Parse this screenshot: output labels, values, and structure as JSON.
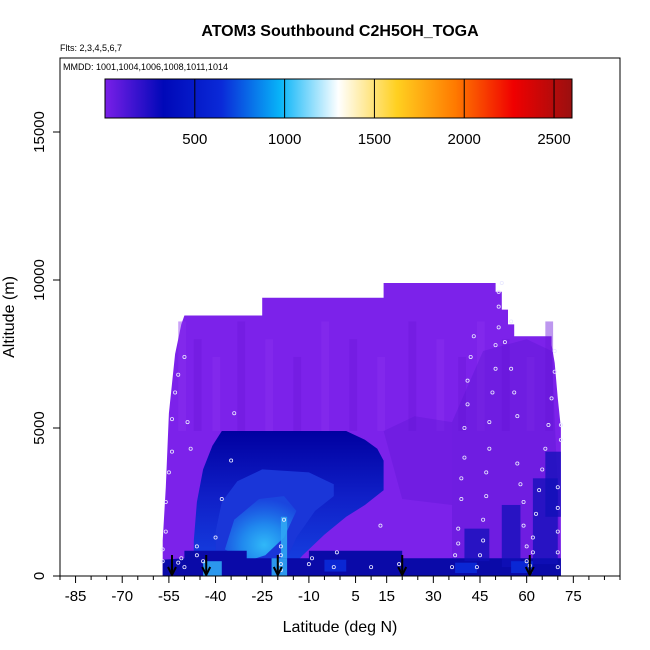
{
  "chart_data": {
    "type": "heatmap",
    "title": "ATOM3 Southbound C2H5OH_TOGA",
    "subtitle_flights": "Flts: 2,3,4,5,6,7",
    "subtitle_dates": "MMDD: 1001,1004,1006,1008,1011,1014",
    "xlabel": "Latitude (deg N)",
    "ylabel": "Altitude (m)",
    "xlim": [
      -90,
      90
    ],
    "ylim": [
      0,
      17500
    ],
    "x_ticks": [
      -85,
      -70,
      -55,
      -40,
      -25,
      -10,
      5,
      15,
      30,
      45,
      60,
      75
    ],
    "x_tick_labels": [
      "-85",
      "-70",
      "-55",
      "-40",
      "-25",
      "-10",
      "5",
      "15",
      "30",
      "45",
      "60",
      "75"
    ],
    "x_minor_step": 5,
    "y_ticks": [
      0,
      5000,
      10000,
      15000
    ],
    "y_tick_labels": [
      "0",
      "5000",
      "10000",
      "15000"
    ],
    "colorbar": {
      "range": [
        0,
        2600
      ],
      "ticks": [
        500,
        1000,
        1500,
        2000,
        2500
      ],
      "tick_labels": [
        "500",
        "1000",
        "1500",
        "2000",
        "2500"
      ],
      "stops": [
        "#7a1fe8",
        "#0008b8",
        "#0a2ad8",
        "#08b4f8",
        "#ffffff",
        "#ffd020",
        "#ff7a00",
        "#f00000",
        "#9a1010"
      ]
    },
    "curtain_outline": [
      [
        -57,
        0
      ],
      [
        -57,
        1200
      ],
      [
        -56,
        3000
      ],
      [
        -55,
        5500
      ],
      [
        -54,
        6500
      ],
      [
        -53,
        7500
      ],
      [
        -52,
        8000
      ],
      [
        -51,
        8500
      ],
      [
        -50,
        8800
      ],
      [
        -25,
        8800
      ],
      [
        -25,
        9400
      ],
      [
        14,
        9400
      ],
      [
        14,
        9900
      ],
      [
        50,
        9900
      ],
      [
        50,
        9600
      ],
      [
        52,
        9600
      ],
      [
        52,
        9000
      ],
      [
        54,
        9000
      ],
      [
        54,
        8500
      ],
      [
        56,
        8500
      ],
      [
        56,
        8100
      ],
      [
        68,
        8100
      ],
      [
        68,
        7800
      ],
      [
        69,
        7200
      ],
      [
        70,
        6000
      ],
      [
        71,
        5000
      ],
      [
        71,
        0
      ]
    ],
    "blue_layer_outline": [
      [
        -47,
        400
      ],
      [
        -47,
        1200
      ],
      [
        -46,
        2500
      ],
      [
        -44,
        3600
      ],
      [
        -41,
        4400
      ],
      [
        -38,
        4900
      ],
      [
        2,
        4900
      ],
      [
        8,
        4600
      ],
      [
        12,
        4300
      ],
      [
        14,
        3900
      ],
      [
        14,
        2900
      ],
      [
        8,
        2400
      ],
      [
        2,
        2000
      ],
      [
        -5,
        1400
      ],
      [
        -12,
        700
      ],
      [
        -15,
        350
      ],
      [
        -47,
        350
      ]
    ],
    "blue_mid_outline": [
      [
        -40,
        400
      ],
      [
        -40,
        1500
      ],
      [
        -38,
        2500
      ],
      [
        -33,
        3200
      ],
      [
        -25,
        3600
      ],
      [
        -10,
        3500
      ],
      [
        -2,
        3100
      ],
      [
        -2,
        2700
      ],
      [
        -8,
        2200
      ],
      [
        -14,
        1300
      ],
      [
        -17,
        600
      ],
      [
        -17,
        400
      ]
    ],
    "light_core": [
      [
        -37,
        900
      ],
      [
        -34,
        1900
      ],
      [
        -26,
        2600
      ],
      [
        -18,
        2700
      ],
      [
        -14,
        2200
      ],
      [
        -18,
        1300
      ],
      [
        -24,
        700
      ],
      [
        -30,
        500
      ]
    ],
    "low_layer_outline": [
      [
        -57,
        0
      ],
      [
        -57,
        550
      ],
      [
        -50,
        600
      ],
      [
        -50,
        850
      ],
      [
        -30,
        850
      ],
      [
        -30,
        600
      ],
      [
        -10,
        600
      ],
      [
        -10,
        850
      ],
      [
        20,
        850
      ],
      [
        20,
        600
      ],
      [
        71,
        600
      ],
      [
        71,
        0
      ]
    ],
    "low_bright_cells": [
      {
        "x0": -44,
        "x1": -38,
        "y0": 0,
        "y1": 500,
        "value": 900
      },
      {
        "x0": -22,
        "x1": -17,
        "y0": 0,
        "y1": 600,
        "value": 1050
      },
      {
        "x0": -19,
        "x1": -17,
        "y0": 600,
        "y1": 2000,
        "value": 1000
      },
      {
        "x0": -5,
        "x1": 2,
        "y0": 150,
        "y1": 550,
        "value": 700
      },
      {
        "x0": 37,
        "x1": 44,
        "y0": 100,
        "y1": 450,
        "value": 600
      },
      {
        "x0": 55,
        "x1": 62,
        "y0": 100,
        "y1": 500,
        "value": 550
      }
    ],
    "points": [
      [
        -57,
        500
      ],
      [
        -57,
        900
      ],
      [
        -56,
        1500
      ],
      [
        -56,
        2500
      ],
      [
        -55,
        3500
      ],
      [
        -54,
        4200
      ],
      [
        -54,
        5300
      ],
      [
        -53,
        6200
      ],
      [
        -52,
        6800
      ],
      [
        -50,
        7400
      ],
      [
        -50,
        300
      ],
      [
        -52,
        450
      ],
      [
        -51,
        600
      ],
      [
        -46,
        700
      ],
      [
        -46,
        1000
      ],
      [
        -48,
        4300
      ],
      [
        -49,
        5200
      ],
      [
        -44,
        500
      ],
      [
        -40,
        1300
      ],
      [
        -38,
        2600
      ],
      [
        -35,
        3900
      ],
      [
        -34,
        5500
      ],
      [
        -19,
        200
      ],
      [
        -19,
        400
      ],
      [
        -19,
        700
      ],
      [
        -19,
        1000
      ],
      [
        -18,
        1900
      ],
      [
        -10,
        400
      ],
      [
        -9,
        600
      ],
      [
        -2,
        300
      ],
      [
        -1,
        800
      ],
      [
        10,
        300
      ],
      [
        13,
        1700
      ],
      [
        19,
        400
      ],
      [
        36,
        300
      ],
      [
        37,
        700
      ],
      [
        38,
        1100
      ],
      [
        38,
        1600
      ],
      [
        39,
        2600
      ],
      [
        39,
        3300
      ],
      [
        40,
        4000
      ],
      [
        40,
        5000
      ],
      [
        41,
        5800
      ],
      [
        41,
        6600
      ],
      [
        42,
        7400
      ],
      [
        43,
        8100
      ],
      [
        44,
        300
      ],
      [
        45,
        700
      ],
      [
        46,
        1200
      ],
      [
        46,
        1900
      ],
      [
        47,
        2700
      ],
      [
        47,
        3500
      ],
      [
        48,
        4300
      ],
      [
        48,
        5200
      ],
      [
        49,
        6200
      ],
      [
        50,
        7000
      ],
      [
        50,
        7800
      ],
      [
        51,
        8400
      ],
      [
        51,
        9100
      ],
      [
        51,
        9600
      ],
      [
        52,
        9900
      ],
      [
        53,
        7900
      ],
      [
        55,
        8600
      ],
      [
        55,
        7000
      ],
      [
        56,
        6200
      ],
      [
        57,
        5400
      ],
      [
        57,
        3800
      ],
      [
        58,
        3100
      ],
      [
        59,
        2500
      ],
      [
        59,
        1700
      ],
      [
        60,
        1000
      ],
      [
        60,
        500
      ],
      [
        61,
        350
      ],
      [
        62,
        800
      ],
      [
        62,
        1300
      ],
      [
        63,
        2100
      ],
      [
        64,
        2900
      ],
      [
        65,
        3600
      ],
      [
        66,
        4300
      ],
      [
        67,
        5100
      ],
      [
        68,
        6000
      ],
      [
        69,
        6900
      ],
      [
        69,
        7600
      ],
      [
        70,
        3000
      ],
      [
        70,
        2300
      ],
      [
        70,
        1500
      ],
      [
        70,
        800
      ],
      [
        70,
        300
      ],
      [
        71,
        4600
      ],
      [
        71,
        5100
      ]
    ],
    "arrows_x": [
      -54,
      -43,
      -20,
      20,
      61
    ],
    "colors": {
      "purple": "#7c22ea",
      "purple_dark": "#6d18dc",
      "navy": "#0a0aa8",
      "blue": "#1a36d8",
      "light_blue": "#2fa6f4",
      "frame": "#000000"
    }
  }
}
